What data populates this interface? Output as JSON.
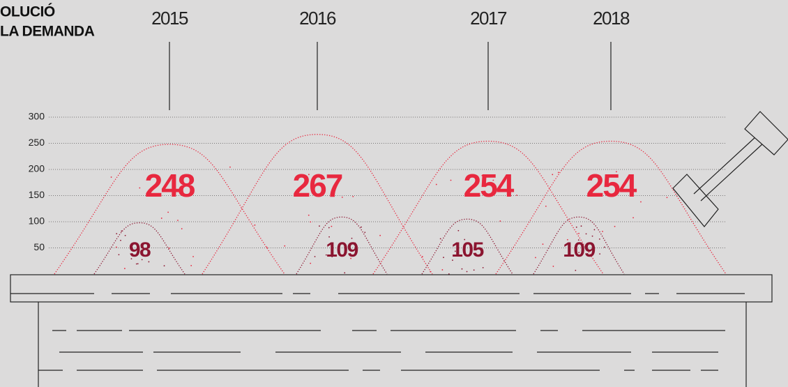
{
  "title_lines": [
    "OLUCIÓ",
    "LA DEMANDA"
  ],
  "chart_data": {
    "type": "mound",
    "categories": [
      "2015",
      "2016",
      "2017",
      "2018"
    ],
    "series": [
      {
        "color": "#e8283f",
        "values": [
          248,
          267,
          254,
          254
        ]
      },
      {
        "color": "#8b1530",
        "values": [
          98,
          109,
          105,
          109
        ]
      }
    ],
    "ylim": [
      0,
      300
    ],
    "yticks": [
      50,
      100,
      150,
      200,
      250,
      300
    ],
    "grid": true
  }
}
